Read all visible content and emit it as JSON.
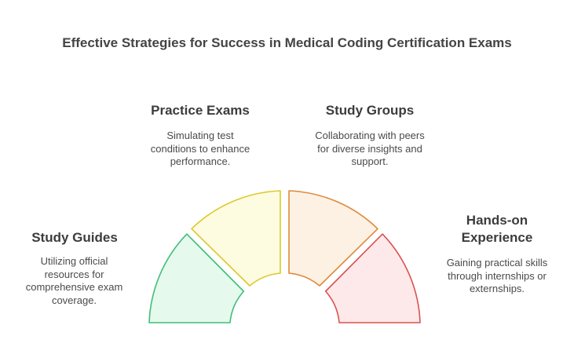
{
  "title": "Effective Strategies for Success in Medical Coding Certification Exams",
  "segments": [
    {
      "key": "study-guides",
      "label": "Study Guides",
      "description": "Utilizing official resources for comprehensive exam coverage.",
      "fill": "#e6f9ed",
      "stroke": "#3fbf78"
    },
    {
      "key": "practice-exams",
      "label": "Practice Exams",
      "description": "Simulating test conditions to enhance performance.",
      "fill": "#fdfbe0",
      "stroke": "#dcc82a"
    },
    {
      "key": "study-groups",
      "label": "Study Groups",
      "description": "Collaborating with peers for diverse insights and support.",
      "fill": "#fdf1e3",
      "stroke": "#e0893a"
    },
    {
      "key": "hands-on-experience",
      "label": "Hands-on Experience",
      "description": "Gaining practical skills through internships or externships.",
      "fill": "#fde9e9",
      "stroke": "#dd5050"
    }
  ]
}
